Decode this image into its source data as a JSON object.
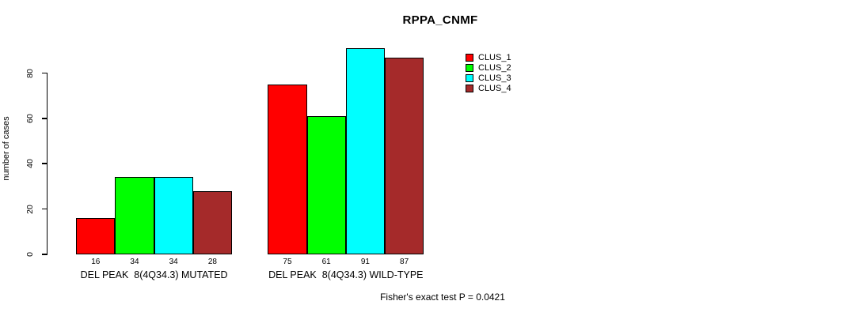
{
  "chart_data": {
    "type": "bar",
    "title": "RPPA_CNMF",
    "ylabel": "number of cases",
    "xlabel": "",
    "ylim": [
      0,
      80
    ],
    "yticks": [
      0,
      20,
      40,
      60,
      80
    ],
    "grid": false,
    "legend_position": "top-right",
    "categories": [
      "DEL PEAK  8(4Q34.3) MUTATED",
      "DEL PEAK  8(4Q34.3) WILD-TYPE"
    ],
    "groups": [
      {
        "label": "DEL PEAK  8(4Q34.3) MUTATED",
        "values": [
          16,
          34,
          34,
          28
        ]
      },
      {
        "label": "DEL PEAK  8(4Q34.3) WILD-TYPE",
        "values": [
          75,
          61,
          91,
          87
        ]
      }
    ],
    "series": [
      {
        "name": "CLUS_1",
        "color": "#FF0000"
      },
      {
        "name": "CLUS_2",
        "color": "#00FF00"
      },
      {
        "name": "CLUS_3",
        "color": "#00FFFF"
      },
      {
        "name": "CLUS_4",
        "color": "#A52A2A"
      }
    ],
    "bar_value_labels": [
      [
        16,
        34,
        34,
        28
      ],
      [
        75,
        61,
        91,
        87
      ]
    ],
    "annotation": "Fisher's exact test P = 0.0421"
  },
  "colors": {
    "axis": "#000000",
    "background": "#FFFFFF",
    "text": "#000000"
  }
}
